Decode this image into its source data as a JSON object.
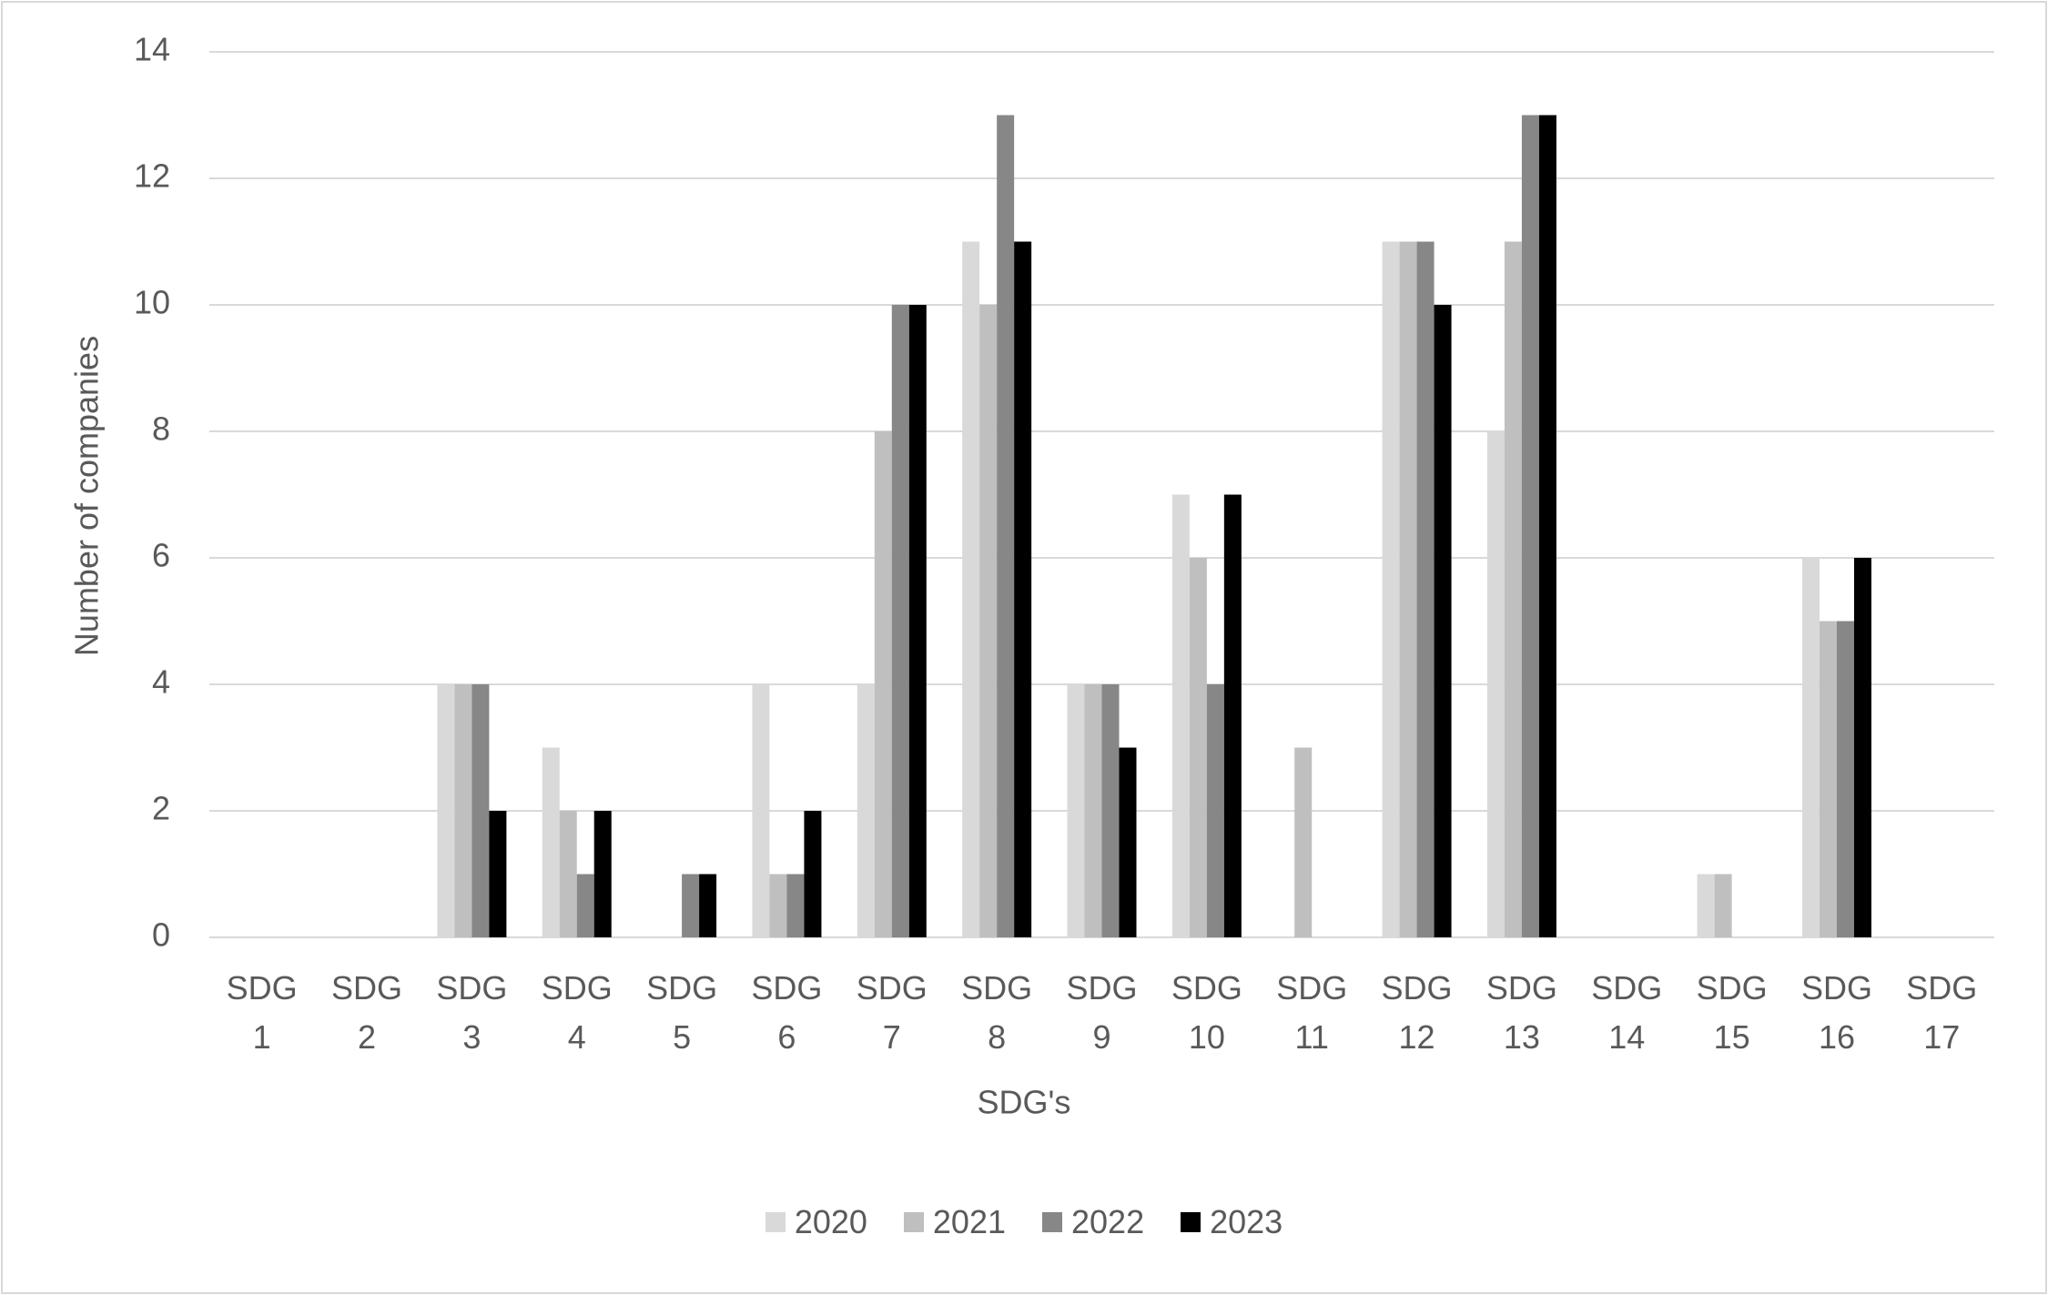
{
  "chart_data": {
    "type": "bar",
    "x_label": "SDG's",
    "y_label": "Number of companies",
    "categories": [
      "SDG 1",
      "SDG 2",
      "SDG 3",
      "SDG 4",
      "SDG 5",
      "SDG 6",
      "SDG 7",
      "SDG 8",
      "SDG 9",
      "SDG 10",
      "SDG 11",
      "SDG 12",
      "SDG 13",
      "SDG 14",
      "SDG 15",
      "SDG 16",
      "SDG 17"
    ],
    "series": [
      {
        "name": "2020",
        "color": "#d9d9d9",
        "values": [
          0,
          0,
          4,
          3,
          0,
          4,
          4,
          11,
          4,
          7,
          0,
          11,
          8,
          0,
          1,
          6,
          0
        ]
      },
      {
        "name": "2021",
        "color": "#bfbfbf",
        "values": [
          0,
          0,
          4,
          2,
          0,
          1,
          8,
          10,
          4,
          6,
          3,
          11,
          11,
          0,
          1,
          5,
          0
        ]
      },
      {
        "name": "2022",
        "color": "#878787",
        "values": [
          0,
          0,
          4,
          1,
          1,
          1,
          10,
          13,
          4,
          4,
          0,
          11,
          13,
          0,
          0,
          5,
          0
        ]
      },
      {
        "name": "2023",
        "color": "#000000",
        "values": [
          0,
          0,
          2,
          2,
          1,
          2,
          10,
          11,
          3,
          7,
          0,
          10,
          13,
          0,
          0,
          6,
          0
        ]
      }
    ],
    "ylim": [
      0,
      14
    ],
    "yticks": [
      0,
      2,
      4,
      6,
      8,
      10,
      12,
      14
    ],
    "grid": true,
    "legend": "bottom"
  }
}
